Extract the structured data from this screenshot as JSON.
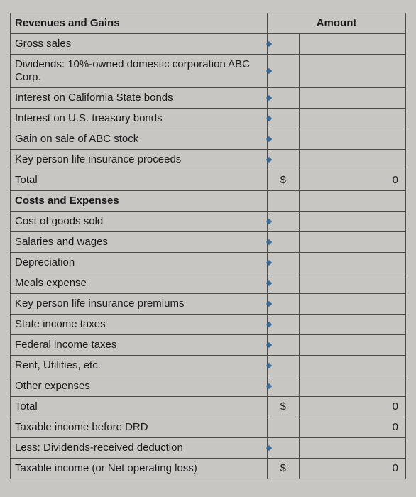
{
  "colors": {
    "background": "#c8c6c2",
    "border": "#4a4a4a",
    "text": "#1a1a1a",
    "notch": "#3a6b9a"
  },
  "columns": {
    "label_width_pct": 65,
    "sym_width_pct": 8,
    "val_width_pct": 27
  },
  "header": {
    "section": "Revenues and Gains",
    "amount_label": "Amount"
  },
  "rows": [
    {
      "label": "Gross sales",
      "bold": false,
      "sym": "",
      "val": "",
      "notch": true
    },
    {
      "label": "Dividends: 10%-owned domestic corporation ABC Corp.",
      "bold": false,
      "sym": "",
      "val": "",
      "notch": true
    },
    {
      "label": "Interest on California State bonds",
      "bold": false,
      "sym": "",
      "val": "",
      "notch": true
    },
    {
      "label": "Interest on U.S. treasury bonds",
      "bold": false,
      "sym": "",
      "val": "",
      "notch": true
    },
    {
      "label": "Gain on sale of ABC stock",
      "bold": false,
      "sym": "",
      "val": "",
      "notch": true
    },
    {
      "label": "Key person life insurance proceeds",
      "bold": false,
      "sym": "",
      "val": "",
      "notch": true
    },
    {
      "label": "Total",
      "bold": false,
      "sym": "$",
      "val": "0",
      "notch": false
    },
    {
      "label": "Costs and Expenses",
      "bold": true,
      "sym": "",
      "val": "",
      "notch": false
    },
    {
      "label": "Cost of goods sold",
      "bold": false,
      "sym": "",
      "val": "",
      "notch": true
    },
    {
      "label": "Salaries and wages",
      "bold": false,
      "sym": "",
      "val": "",
      "notch": true
    },
    {
      "label": "Depreciation",
      "bold": false,
      "sym": "",
      "val": "",
      "notch": true
    },
    {
      "label": "Meals expense",
      "bold": false,
      "sym": "",
      "val": "",
      "notch": true
    },
    {
      "label": "Key person life insurance premiums",
      "bold": false,
      "sym": "",
      "val": "",
      "notch": true
    },
    {
      "label": "State income taxes",
      "bold": false,
      "sym": "",
      "val": "",
      "notch": true
    },
    {
      "label": "Federal income taxes",
      "bold": false,
      "sym": "",
      "val": "",
      "notch": true
    },
    {
      "label": "Rent, Utilities, etc.",
      "bold": false,
      "sym": "",
      "val": "",
      "notch": true
    },
    {
      "label": "Other expenses",
      "bold": false,
      "sym": "",
      "val": "",
      "notch": true
    },
    {
      "label": "Total",
      "bold": false,
      "sym": "$",
      "val": "0",
      "notch": false
    },
    {
      "label": "Taxable income before DRD",
      "bold": false,
      "sym": "",
      "val": "0",
      "notch": false
    },
    {
      "label": "Less: Dividends-received deduction",
      "bold": false,
      "sym": "",
      "val": "",
      "notch": true
    },
    {
      "label": "Taxable income (or Net operating loss)",
      "bold": false,
      "sym": "$",
      "val": "0",
      "notch": false
    }
  ]
}
